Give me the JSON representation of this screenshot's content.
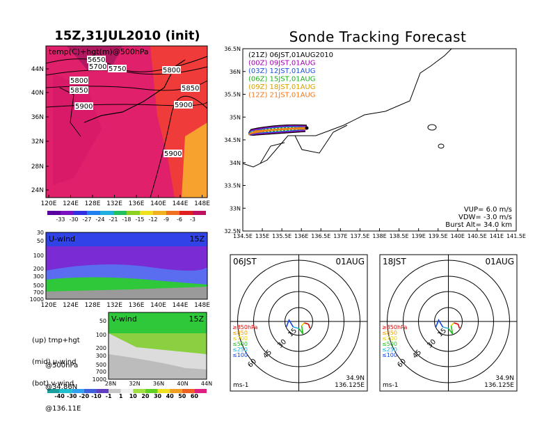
{
  "header": {
    "left_title": "15Z,31JUL2010 (init)",
    "right_title": "Sonde Tracking Forecast"
  },
  "colors": {
    "temp_fill": "#e0206a",
    "temp_fill_warm": "#ef3c3a",
    "temp_fill_hot": "#f7a12e",
    "uwind_top": "#2f43e6",
    "uwind_mid": "#7a2bd4",
    "uwind_low": "#2ec83a",
    "vwind_top": "#2ec83a",
    "run_21z": "#000000",
    "run_00z": "#a000b0",
    "run_03z": "#1f4fe0",
    "run_06z": "#22b022",
    "run_09z": "#d4a000",
    "run_12z": "#f07820"
  },
  "temp_map": {
    "label": "temp(C)+hgt(m)@500hPa",
    "contours": [
      "5650",
      "5700",
      "5750",
      "5800",
      "5800",
      "5850",
      "5850",
      "5900",
      "5900",
      "5900"
    ],
    "lat_ticks": [
      "44N",
      "40N",
      "36N",
      "32N",
      "28N",
      "24N"
    ],
    "lon_ticks": [
      "120E",
      "124E",
      "128E",
      "132E",
      "136E",
      "140E",
      "144E",
      "148E"
    ]
  },
  "temp_colorbar": [
    "-33",
    "-30",
    "-27",
    "-24",
    "-21",
    "-18",
    "-15",
    "-12",
    "-9",
    "-6",
    "-3"
  ],
  "uwind": {
    "label": "U-wind",
    "time": "15Z",
    "p_ticks": [
      "30",
      "50",
      "100",
      "200",
      "300",
      "500",
      "700",
      "1000"
    ],
    "lon_ticks": [
      "120E",
      "124E",
      "128E",
      "132E",
      "136E",
      "140E",
      "144E",
      "148E"
    ]
  },
  "vwind": {
    "label": "V-wind",
    "time": "15Z",
    "p_ticks": [
      "50",
      "100",
      "200",
      "300",
      "500",
      "700",
      "1000"
    ],
    "lat_ticks": [
      "28N",
      "32N",
      "36N",
      "40N",
      "44N"
    ]
  },
  "wind_colorbar": [
    "-40",
    "-30",
    "-20",
    "-10",
    "-1",
    "1",
    "10",
    "20",
    "30",
    "40",
    "50",
    "60"
  ],
  "notes": [
    [
      "(up) tmp+hgt",
      "      @500hPa"
    ],
    [
      "(mid) u-wind",
      "      @34.86N"
    ],
    [
      "(bot) v-wind",
      "      @136.11E"
    ]
  ],
  "track_map": {
    "lat_ticks": [
      "36.5N",
      "36N",
      "35.5N",
      "35N",
      "34.5N",
      "34N",
      "33.5N",
      "33N",
      "32.5N"
    ],
    "lon_ticks": [
      "134.5E",
      "135E",
      "135.5E",
      "136E",
      "136.5E",
      "137E",
      "137.5E",
      "138E",
      "138.5E",
      "139E",
      "139.5E",
      "140E",
      "140.5E",
      "141E",
      "141.5E"
    ],
    "legend": [
      "(21Z)  06JST,01AUG2010",
      "(00Z)  09JST,01AUG",
      "(03Z)  12JST,01AUG",
      "(06Z)  15JST,01AUG",
      "(09Z)  18JST,01AUG",
      "(12Z)  21JST,01AUG"
    ],
    "params": [
      "VUP=  6.0  m/s",
      "VDW=  -3.0  m/s",
      "Burst Alt=  34.0  km"
    ]
  },
  "polar_06": {
    "time_label": "06JST",
    "date_label": "01AUG",
    "ring_labels": [
      "15",
      "30",
      "45",
      "60"
    ],
    "unit": "ms-1",
    "lat": "34.9N",
    "lon": "136.125E",
    "levels": [
      "≥850hPa",
      "≤850",
      "≤700",
      "≤500",
      "≤250",
      "≤100"
    ]
  },
  "polar_18": {
    "time_label": "18JST",
    "date_label": "01AUG",
    "ring_labels": [
      "15",
      "30",
      "45",
      "60"
    ],
    "unit": "ms-1",
    "lat": "34.9N",
    "lon": "136.125E",
    "levels": [
      "≥850hPa",
      "≤850",
      "≤700",
      "≤500",
      "≤250",
      "≤100"
    ]
  },
  "level_colors": [
    "#e00000",
    "#f0a000",
    "#e8d000",
    "#20c020",
    "#20b0e0",
    "#1040e0"
  ]
}
